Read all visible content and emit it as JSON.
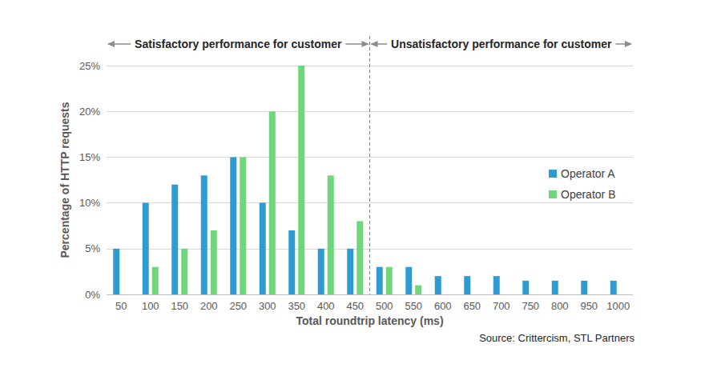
{
  "chart_data": {
    "type": "bar",
    "x_label": "Total roundtrip latency (ms)",
    "y_label": "Percentage of HTTP requests",
    "categories": [
      "50",
      "100",
      "150",
      "200",
      "250",
      "300",
      "350",
      "400",
      "450",
      "500",
      "550",
      "600",
      "650",
      "700",
      "750",
      "800",
      "950",
      "1000"
    ],
    "series": [
      {
        "name": "Operator A",
        "color": "#2f9bd3",
        "values": [
          5,
          10,
          12,
          13,
          15,
          10,
          7,
          5,
          5,
          3,
          3,
          2,
          2,
          2,
          1.5,
          1.5,
          1.5,
          1.5
        ]
      },
      {
        "name": "Operator B",
        "color": "#6fd67c",
        "values": [
          null,
          3,
          5,
          7,
          15,
          20,
          25,
          13,
          8,
          3,
          1,
          null,
          null,
          null,
          null,
          null,
          null,
          null
        ]
      }
    ],
    "ylim": [
      0,
      25
    ],
    "yticks": [
      {
        "value": 0,
        "label": "0%"
      },
      {
        "value": 5,
        "label": "5%"
      },
      {
        "value": 10,
        "label": "10%"
      },
      {
        "value": 15,
        "label": "15%"
      },
      {
        "value": 20,
        "label": "20%"
      },
      {
        "value": 25,
        "label": "25%"
      }
    ],
    "grid": true,
    "legend": "right",
    "annotations": [
      {
        "text": "Satisfactory performance for customer",
        "from": "50",
        "to": "450"
      },
      {
        "text": "Unsatisfactory performance for customer",
        "from": "500",
        "to": "1000"
      }
    ],
    "source": "Source: Crittercism, STL Partners"
  }
}
